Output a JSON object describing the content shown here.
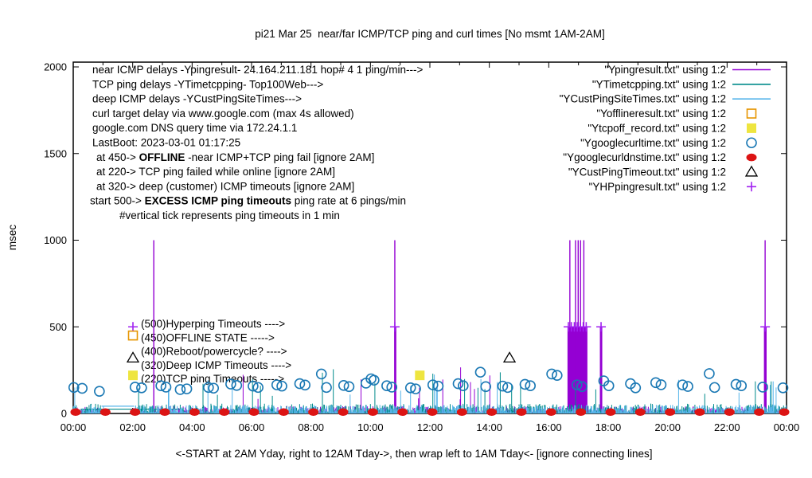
{
  "chart_data": {
    "type": "line",
    "title": "pi21 Mar 25  near/far ICMP/TCP ping and curl times [No msmt 1AM-2AM]",
    "x_caption": "<-START at 2AM Yday, right to 12AM Tday->, then wrap left to 1AM Tday<- [ignore connecting lines]",
    "ylabel": "msec",
    "ylim": [
      0,
      2000
    ],
    "y_ticks": [
      0,
      500,
      1000,
      1500,
      2000
    ],
    "x_hours": [
      0,
      24
    ],
    "x_tick_labels": [
      "00:00",
      "02:00",
      "04:00",
      "06:00",
      "08:00",
      "10:00",
      "12:00",
      "14:00",
      "16:00",
      "18:00",
      "20:00",
      "22:00",
      "00:00"
    ],
    "x_minor_tick_every_hours": 1,
    "grid": false,
    "legend_position": "top-right",
    "no_measurement_gap_hours": [
      1.03,
      1.97
    ],
    "noise_seed": 1337,
    "notes_left": [
      {
        "indent": 116,
        "parts": [
          {
            "t": "near ICMP delays -Ypingresult- 24.164.211.181 hop# 4 1 ping/min--->",
            "b": false
          }
        ]
      },
      {
        "indent": 116,
        "parts": [
          {
            "t": "TCP ping delays -YTimetcpping- Top100Web--->",
            "b": false
          }
        ]
      },
      {
        "indent": 116,
        "parts": [
          {
            "t": "deep ICMP delays -YCustPingSiteTimes--->",
            "b": false
          }
        ]
      },
      {
        "indent": 116,
        "parts": [
          {
            "t": "curl target delay via www.google.com (max 4s allowed)",
            "b": false
          }
        ]
      },
      {
        "indent": 116,
        "parts": [
          {
            "t": "google.com DNS query time via 172.24.1.1",
            "b": false
          }
        ]
      },
      {
        "indent": 116,
        "parts": [
          {
            "t": "LastBoot: 2023-03-01 01:17:25",
            "b": false
          }
        ]
      },
      {
        "indent": 121,
        "parts": [
          {
            "t": "at 450->  ",
            "b": false
          },
          {
            "t": "OFFLINE",
            "b": true
          },
          {
            "t": "  -near ICMP+TCP ping fail [ignore 2AM]",
            "b": false
          }
        ]
      },
      {
        "indent": 121,
        "parts": [
          {
            "t": "at 220-> TCP ping failed while online [ignore 2AM]",
            "b": false
          }
        ]
      },
      {
        "indent": 121,
        "parts": [
          {
            "t": "at 320-> deep (customer) ICMP timeouts [ignore 2AM]",
            "b": false
          }
        ]
      },
      {
        "indent": 113,
        "parts": [
          {
            "t": "start 500->  ",
            "b": false
          },
          {
            "t": "EXCESS ICMP ping timeouts",
            "b": true
          },
          {
            "t": "  ping rate at 6 pings/min",
            "b": false
          }
        ]
      },
      {
        "indent": 150,
        "parts": [
          {
            "t": "#vertical tick represents ping timeouts in 1 min",
            "b": false
          }
        ]
      }
    ],
    "level_annotations": [
      {
        "value": 500,
        "marker": "plus",
        "color": "#a020f0",
        "label": "(500)Hyperping Timeouts ---->"
      },
      {
        "value": 450,
        "marker": "square-open",
        "color": "#e69500",
        "label": "(450)OFFLINE STATE ----->"
      },
      {
        "value": 400,
        "marker": null,
        "color": "#000000",
        "label": "(400)Reboot/powercycle? ---->"
      },
      {
        "value": 320,
        "marker": "triangle-open",
        "color": "#000000",
        "label": "(320)Deep ICMP Timeouts ---->"
      },
      {
        "value": 220,
        "marker": "square-filled",
        "color": "#eee53f",
        "label": "(220)TCP ping Timeouts ----->"
      }
    ],
    "legend": [
      {
        "label": "\"Ypingresult.txt\" using 1:2",
        "kind": "line",
        "color": "#9400d3"
      },
      {
        "label": "\"YTimetcpping.txt\" using 1:2",
        "kind": "line",
        "color": "#008b8b"
      },
      {
        "label": "\"YCustPingSiteTimes.txt\" using 1:2",
        "kind": "line",
        "color": "#56b4e9"
      },
      {
        "label": "\"Yofflineresult.txt\" using 1:2",
        "kind": "square-open",
        "color": "#e69500"
      },
      {
        "label": "\"Ytcpoff_record.txt\" using 1:2",
        "kind": "square-filled",
        "color": "#eee53f"
      },
      {
        "label": "\"Ygooglecurltime.txt\" using 1:2",
        "kind": "circle-open",
        "color": "#1a78b4"
      },
      {
        "label": "\"Ygooglecurldnstime.txt\" using 1:2",
        "kind": "circle-filled",
        "color": "#dc1414"
      },
      {
        "label": "\"YCustPingTimeout.txt\" using 1:2",
        "kind": "triangle-open",
        "color": "#000000"
      },
      {
        "label": "\"YHPpingresult.txt\" using 1:2",
        "kind": "plus",
        "color": "#a020f0"
      }
    ],
    "series": [
      {
        "name": "Ypingresult",
        "color": "#9400d3",
        "style": "impulses",
        "noise": {
          "p_tall": 0.011,
          "tall": [
            70,
            300
          ],
          "base": 40,
          "pow": 3.0
        },
        "spikes_1000_hours": [
          2.71,
          10.82,
          16.71,
          16.9,
          16.99,
          17.07,
          17.18,
          23.28
        ],
        "columns_500_hour_ranges": [
          [
            16.63,
            17.3
          ],
          [
            10.8,
            10.87
          ],
          [
            17.72,
            17.8
          ],
          [
            23.24,
            23.33
          ]
        ]
      },
      {
        "name": "YTimetcpping",
        "color": "#008b8b",
        "style": "impulses",
        "noise": {
          "p_tall": 0.012,
          "tall": [
            100,
            260
          ],
          "base": 55,
          "pow": 2.4
        },
        "extra_spikes": [
          {
            "hour": 8.75,
            "msec": 255
          },
          {
            "hour": 12.1,
            "msec": 230
          },
          {
            "hour": 16.9,
            "msec": 195
          },
          {
            "hour": 22.95,
            "msec": 185
          },
          {
            "hour": 6.3,
            "msec": 160
          },
          {
            "hour": 10.15,
            "msec": 175
          }
        ],
        "gap_bridge_line": {
          "from_hour": 0.25,
          "to_hour": 3.65,
          "msec": 25
        }
      },
      {
        "name": "YCustPingSiteTimes",
        "color": "#56b4e9",
        "style": "impulses",
        "noise": {
          "p_tall": 0.009,
          "tall": [
            90,
            200
          ],
          "base": 48,
          "pow": 2.6
        },
        "extra_spikes": [
          {
            "hour": 23.45,
            "msec": 165
          },
          {
            "hour": 23.55,
            "msec": 185
          },
          {
            "hour": 23.65,
            "msec": 150
          },
          {
            "hour": 12.15,
            "msec": 225
          },
          {
            "hour": 3.2,
            "msec": 140
          },
          {
            "hour": 0.05,
            "msec": 150
          }
        ],
        "gap_bridge_line": {
          "from_hour": 0.95,
          "to_hour": 2.05,
          "msec": 42
        }
      },
      {
        "name": "Yofflineresult",
        "color": "#e69500",
        "style": "square-open",
        "points": []
      },
      {
        "name": "Ytcpoff_record",
        "color": "#eee53f",
        "style": "square-filled",
        "points": [
          {
            "hour": 11.66,
            "msec": 220
          }
        ]
      },
      {
        "name": "Ygooglecurltime",
        "color": "#1a78b4",
        "style": "circle-open",
        "points_hv": [
          [
            0.02,
            150
          ],
          [
            0.3,
            145
          ],
          [
            0.88,
            128
          ],
          [
            2.08,
            152
          ],
          [
            2.3,
            148
          ],
          [
            2.95,
            160
          ],
          [
            3.12,
            152
          ],
          [
            3.6,
            138
          ],
          [
            3.82,
            142
          ],
          [
            4.55,
            150
          ],
          [
            4.72,
            146
          ],
          [
            5.3,
            170
          ],
          [
            5.5,
            162
          ],
          [
            6.05,
            158
          ],
          [
            6.22,
            150
          ],
          [
            6.85,
            165
          ],
          [
            7.02,
            158
          ],
          [
            7.62,
            172
          ],
          [
            7.8,
            164
          ],
          [
            8.35,
            228
          ],
          [
            8.52,
            150
          ],
          [
            9.1,
            162
          ],
          [
            9.28,
            155
          ],
          [
            9.85,
            175
          ],
          [
            10.02,
            200
          ],
          [
            10.12,
            192
          ],
          [
            10.55,
            160
          ],
          [
            10.72,
            152
          ],
          [
            11.35,
            148
          ],
          [
            11.52,
            142
          ],
          [
            12.1,
            165
          ],
          [
            12.28,
            158
          ],
          [
            12.95,
            172
          ],
          [
            13.12,
            160
          ],
          [
            13.7,
            238
          ],
          [
            13.88,
            155
          ],
          [
            14.45,
            158
          ],
          [
            14.62,
            150
          ],
          [
            15.2,
            168
          ],
          [
            15.38,
            160
          ],
          [
            16.1,
            228
          ],
          [
            16.28,
            220
          ],
          [
            16.95,
            165
          ],
          [
            17.12,
            155
          ],
          [
            17.85,
            188
          ],
          [
            18.02,
            160
          ],
          [
            18.75,
            172
          ],
          [
            18.92,
            148
          ],
          [
            19.6,
            178
          ],
          [
            19.78,
            166
          ],
          [
            20.5,
            165
          ],
          [
            20.68,
            156
          ],
          [
            21.4,
            230
          ],
          [
            21.58,
            150
          ],
          [
            22.3,
            168
          ],
          [
            22.48,
            160
          ],
          [
            23.2,
            152
          ],
          [
            23.88,
            148
          ]
        ]
      },
      {
        "name": "Ygooglecurldnstime",
        "color": "#dc1414",
        "style": "circle-filled",
        "msec": 8,
        "hours": [
          0.08,
          1.08,
          2.08,
          3.08,
          4.08,
          5.08,
          6.08,
          7.08,
          8.08,
          9.08,
          10.08,
          11.08,
          12.08,
          13.08,
          14.08,
          15.08,
          16.08,
          17.08,
          18.08,
          19.08,
          20.08,
          21.08,
          22.08,
          23.08,
          23.92
        ]
      },
      {
        "name": "YCustPingTimeout",
        "color": "#000000",
        "style": "triangle-open",
        "points": [
          {
            "hour": 14.68,
            "msec": 320
          }
        ]
      },
      {
        "name": "YHPpingresult",
        "color": "#a020f0",
        "style": "plus",
        "msec": 500,
        "hours": [
          10.82,
          16.66,
          16.76,
          16.86,
          16.96,
          17.06,
          17.16,
          17.26,
          17.76,
          23.28
        ]
      }
    ]
  }
}
